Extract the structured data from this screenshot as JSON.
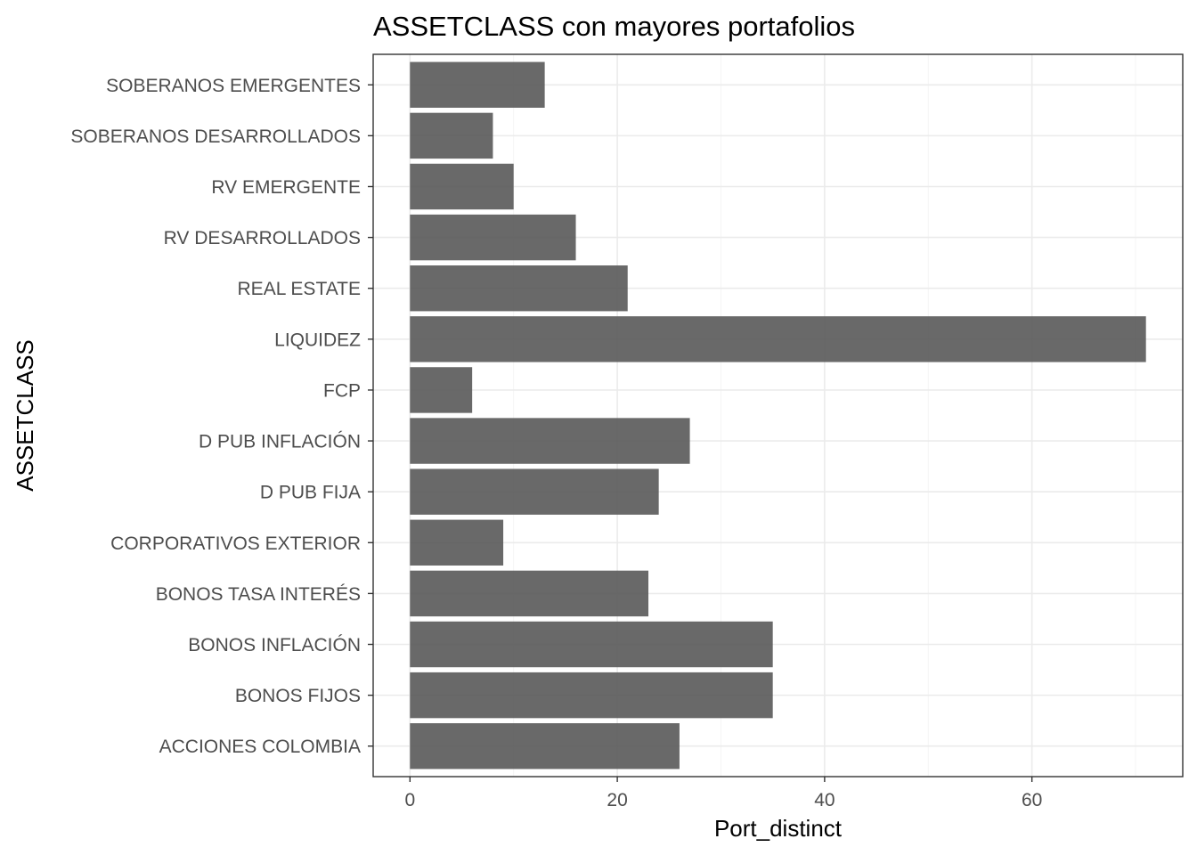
{
  "chart_data": {
    "type": "bar",
    "orientation": "horizontal",
    "title": "ASSETCLASS con mayores portafolios",
    "xlabel": "Port_distinct",
    "ylabel": "ASSETCLASS",
    "categories": [
      "ACCIONES COLOMBIA",
      "BONOS FIJOS",
      "BONOS INFLACIÓN",
      "BONOS TASA INTERÉS",
      "CORPORATIVOS EXTERIOR",
      "D PUB FIJA",
      "D PUB INFLACIÓN",
      "FCP",
      "LIQUIDEZ",
      "REAL ESTATE",
      "RV DESARROLLADOS",
      "RV EMERGENTE",
      "SOBERANOS DESARROLLADOS",
      "SOBERANOS EMERGENTES"
    ],
    "values": [
      26,
      35,
      35,
      23,
      9,
      24,
      27,
      6,
      71,
      21,
      16,
      10,
      8,
      13
    ],
    "xticks": [
      0,
      20,
      40,
      60
    ],
    "xlim": [
      -3.55,
      74.55
    ],
    "bar_color": "#595959",
    "grid": true,
    "theme": "bw"
  }
}
